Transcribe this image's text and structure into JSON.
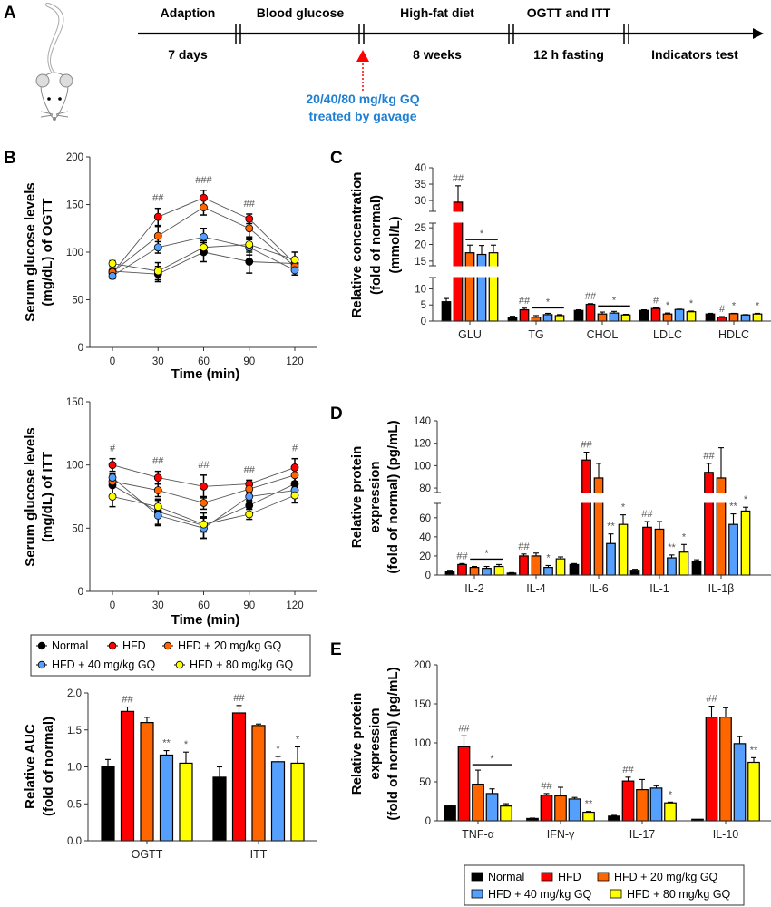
{
  "panels": {
    "a": "A",
    "b": "B",
    "c": "C",
    "d": "D",
    "e": "E"
  },
  "timeline": {
    "stages_top": [
      "Adaption",
      "Blood glucose",
      "High-fat diet",
      "OGTT and ITT"
    ],
    "stages_bottom": [
      "7 days",
      "8 weeks",
      "12 h fasting",
      "Indicators test"
    ],
    "treatment_line1": "20/40/80 mg/kg GQ",
    "treatment_line2": "treated by gavage",
    "treatment_color": "#1f7fd3",
    "arrow_color": "#ff0000",
    "icon": "mouse-illustration"
  },
  "colors": {
    "Normal": "#000000",
    "HFD": "#ff0000",
    "HFD + 20 mg/kg GQ": "#ff6600",
    "HFD + 40 mg/kg GQ": "#55a0ff",
    "HFD + 80 mg/kg GQ": "#ffff00"
  },
  "legend_lines": [
    "Normal",
    "HFD",
    "HFD + 20 mg/kg GQ",
    "HFD + 40 mg/kg GQ",
    "HFD + 80 mg/kg GQ"
  ],
  "legend_bars": [
    "Normal",
    "HFD",
    "HFD + 20 mg/kg GQ",
    "HFD + 40 mg/kg GQ",
    "HFD + 80 mg/kg GQ"
  ],
  "chart_data": [
    {
      "id": "ogtt",
      "type": "line",
      "panel": "B",
      "xlabel": "Time (min)",
      "ylabel": [
        "Serum glucose levels",
        "(mg/dL) of OGTT"
      ],
      "x": [
        0,
        30,
        60,
        90,
        120
      ],
      "xticks": [
        0,
        30,
        60,
        90,
        120
      ],
      "ylim": [
        0,
        200
      ],
      "yticks": [
        0,
        50,
        100,
        150,
        200
      ],
      "grid": false,
      "series": [
        {
          "name": "Normal",
          "values": [
            80,
            77,
            100,
            90,
            88
          ],
          "errors": [
            6,
            8,
            10,
            12,
            5
          ]
        },
        {
          "name": "HFD",
          "values": [
            78,
            137,
            157,
            135,
            88
          ],
          "errors": [
            3,
            9,
            8,
            5,
            5
          ]
        },
        {
          "name": "HFD + 20 mg/kg GQ",
          "values": [
            79,
            117,
            147,
            125,
            85
          ],
          "errors": [
            3,
            10,
            8,
            10,
            5
          ]
        },
        {
          "name": "HFD + 40 mg/kg GQ",
          "values": [
            75,
            105,
            116,
            105,
            81
          ],
          "errors": [
            3,
            6,
            9,
            8,
            5
          ]
        },
        {
          "name": "HFD + 80 mg/kg GQ",
          "values": [
            88,
            80,
            105,
            108,
            92
          ],
          "errors": [
            3,
            9,
            7,
            8,
            8
          ]
        }
      ],
      "annotations": [
        {
          "x": 30,
          "text": "##"
        },
        {
          "x": 60,
          "text": "###"
        },
        {
          "x": 90,
          "text": "##"
        }
      ]
    },
    {
      "id": "itt",
      "type": "line",
      "panel": "B",
      "xlabel": "Time (min)",
      "ylabel": [
        "Serum glucose levels",
        "(mg/dL) of ITT"
      ],
      "x": [
        0,
        30,
        60,
        90,
        120
      ],
      "xticks": [
        0,
        30,
        60,
        90,
        120
      ],
      "ylim": [
        0,
        150
      ],
      "yticks": [
        0,
        50,
        100,
        150
      ],
      "grid": false,
      "series": [
        {
          "name": "Normal",
          "values": [
            84,
            63,
            52,
            68,
            85
          ],
          "errors": [
            8,
            10,
            10,
            3,
            8
          ]
        },
        {
          "name": "HFD",
          "values": [
            100,
            90,
            83,
            85,
            98
          ],
          "errors": [
            5,
            5,
            9,
            3,
            7
          ]
        },
        {
          "name": "HFD + 20 mg/kg GQ",
          "values": [
            87,
            80,
            70,
            81,
            92
          ],
          "errors": [
            4,
            5,
            5,
            3,
            5
          ]
        },
        {
          "name": "HFD + 40 mg/kg GQ",
          "values": [
            90,
            60,
            50,
            75,
            80
          ],
          "errors": [
            3,
            8,
            8,
            3,
            5
          ]
        },
        {
          "name": "HFD + 80 mg/kg GQ",
          "values": [
            75,
            67,
            53,
            61,
            76
          ],
          "errors": [
            8,
            5,
            6,
            4,
            6
          ]
        }
      ],
      "annotations": [
        {
          "x": 0,
          "text": "#"
        },
        {
          "x": 30,
          "text": "##"
        },
        {
          "x": 60,
          "text": "##"
        },
        {
          "x": 90,
          "text": "##"
        },
        {
          "x": 120,
          "text": "#"
        }
      ]
    },
    {
      "id": "auc",
      "type": "bar",
      "panel": "B",
      "ylabel": [
        "Relative AUC",
        "(fold of normal)"
      ],
      "categories": [
        "OGTT",
        "ITT"
      ],
      "ylim": [
        0,
        2
      ],
      "yticks": [
        "0.0",
        "0.5",
        "1.0",
        "1.5",
        "2.0"
      ],
      "series": [
        {
          "name": "Normal",
          "values": [
            1.0,
            0.86
          ],
          "errors": [
            0.1,
            0.14
          ]
        },
        {
          "name": "HFD",
          "values": [
            1.75,
            1.73
          ],
          "errors": [
            0.06,
            0.1
          ]
        },
        {
          "name": "HFD + 20 mg/kg GQ",
          "values": [
            1.6,
            1.56
          ],
          "errors": [
            0.07,
            0.02
          ]
        },
        {
          "name": "HFD + 40 mg/kg GQ",
          "values": [
            1.16,
            1.07
          ],
          "errors": [
            0.06,
            0.07
          ]
        },
        {
          "name": "HFD + 80 mg/kg GQ",
          "values": [
            1.05,
            1.05
          ],
          "errors": [
            0.15,
            0.22
          ]
        }
      ],
      "annotations": [
        {
          "category": "OGTT",
          "series": "HFD",
          "text": "##"
        },
        {
          "category": "OGTT",
          "series": "HFD + 40 mg/kg GQ",
          "text": "**"
        },
        {
          "category": "OGTT",
          "series": "HFD + 80 mg/kg GQ",
          "text": "*"
        },
        {
          "category": "ITT",
          "series": "HFD",
          "text": "##"
        },
        {
          "category": "ITT",
          "series": "HFD + 40 mg/kg GQ",
          "text": "*"
        },
        {
          "category": "ITT",
          "series": "HFD + 80 mg/kg GQ",
          "text": "*"
        }
      ]
    },
    {
      "id": "lipids",
      "type": "bar",
      "panel": "C",
      "ylabel": [
        "Relative concentration",
        "(fold of normal)",
        "(mmol/L)"
      ],
      "categories": [
        "GLU",
        "TG",
        "CHOL",
        "LDLC",
        "HDLC"
      ],
      "ylim": [
        0,
        40
      ],
      "y_axis_segments": [
        [
          0,
          13.5
        ],
        [
          13.6,
          26.4
        ],
        [
          26.7,
          40
        ]
      ],
      "yticks": [
        0,
        5,
        10,
        15,
        20,
        25,
        30,
        35,
        40
      ],
      "series": [
        {
          "name": "Normal",
          "values": [
            6,
            1.2,
            3.3,
            3.3,
            2.2
          ],
          "errors": [
            1,
            0.3,
            0.2,
            0.2,
            0.2
          ]
        },
        {
          "name": "HFD",
          "values": [
            29.5,
            3.5,
            5.2,
            3.9,
            1.2
          ],
          "errors": [
            5,
            0.5,
            0.2,
            0.2,
            0.2
          ]
        },
        {
          "name": "HFD + 20 mg/kg GQ",
          "values": [
            17.5,
            1.2,
            2.2,
            2.2,
            2.3
          ],
          "errors": [
            2.3,
            0.5,
            0.6,
            0.3,
            0.1
          ]
        },
        {
          "name": "HFD + 40 mg/kg GQ",
          "values": [
            17,
            2.0,
            2.5,
            3.6,
            1.9
          ],
          "errors": [
            2.7,
            0.4,
            0.5,
            0.1,
            0.1
          ]
        },
        {
          "name": "HFD + 80 mg/kg GQ",
          "values": [
            17.5,
            1.7,
            1.9,
            2.9,
            2.2
          ],
          "errors": [
            2.3,
            0.3,
            0.2,
            0.2,
            0.2
          ]
        }
      ],
      "annotations": [
        {
          "category": "GLU",
          "series": "HFD",
          "text": "##"
        },
        {
          "category": "GLU",
          "bracket": [
            "HFD + 20 mg/kg GQ",
            "HFD + 80 mg/kg GQ"
          ],
          "text": "*"
        },
        {
          "category": "TG",
          "series": "HFD",
          "text": "##"
        },
        {
          "category": "TG",
          "bracket": [
            "HFD + 20 mg/kg GQ",
            "HFD + 80 mg/kg GQ"
          ],
          "text": "*"
        },
        {
          "category": "CHOL",
          "series": "HFD",
          "text": "##"
        },
        {
          "category": "CHOL",
          "bracket": [
            "HFD + 20 mg/kg GQ",
            "HFD + 80 mg/kg GQ"
          ],
          "text": "*"
        },
        {
          "category": "LDLC",
          "series": "HFD",
          "text": "#"
        },
        {
          "category": "LDLC",
          "series": "HFD + 20 mg/kg GQ",
          "text": "*"
        },
        {
          "category": "LDLC",
          "series": "HFD + 80 mg/kg GQ",
          "text": "*"
        },
        {
          "category": "HDLC",
          "series": "HFD",
          "text": "#"
        },
        {
          "category": "HDLC",
          "series": "HFD + 20 mg/kg GQ",
          "text": "*"
        },
        {
          "category": "HDLC",
          "series": "HFD + 80 mg/kg GQ",
          "text": "*"
        }
      ]
    },
    {
      "id": "interleukins",
      "type": "bar",
      "panel": "D",
      "ylabel": [
        "Relative protein",
        "expression",
        "(fold of normal) (pg/mL)"
      ],
      "categories": [
        "IL-2",
        "IL-4",
        "IL-6",
        "IL-1",
        "IL-1β"
      ],
      "ylim": [
        0,
        140
      ],
      "y_axis_segments": [
        [
          0,
          75
        ],
        [
          76,
          140
        ]
      ],
      "yticks": [
        0,
        20,
        40,
        60,
        80,
        100,
        120,
        140
      ],
      "series": [
        {
          "name": "Normal",
          "values": [
            4,
            2,
            11,
            5,
            14
          ],
          "errors": [
            1,
            0.5,
            1,
            1,
            2
          ]
        },
        {
          "name": "HFD",
          "values": [
            11,
            20,
            105,
            50,
            94
          ],
          "errors": [
            1,
            2,
            7,
            6,
            8
          ]
        },
        {
          "name": "HFD + 20 mg/kg GQ",
          "values": [
            8,
            20,
            89,
            48,
            89
          ],
          "errors": [
            1,
            3,
            13,
            8,
            27
          ]
        },
        {
          "name": "HFD + 40 mg/kg GQ",
          "values": [
            7,
            8,
            33,
            18,
            53
          ],
          "errors": [
            2,
            2,
            10,
            3,
            11
          ]
        },
        {
          "name": "HFD + 80 mg/kg GQ",
          "values": [
            9,
            17,
            53,
            24,
            67
          ],
          "errors": [
            2,
            2,
            10,
            8,
            4
          ]
        }
      ],
      "annotations": [
        {
          "category": "IL-2",
          "series": "HFD",
          "text": "##"
        },
        {
          "category": "IL-2",
          "bracket": [
            "HFD + 20 mg/kg GQ",
            "HFD + 80 mg/kg GQ"
          ],
          "text": "*"
        },
        {
          "category": "IL-4",
          "series": "HFD",
          "text": "##"
        },
        {
          "category": "IL-4",
          "series": "HFD + 40 mg/kg GQ",
          "text": "*"
        },
        {
          "category": "IL-6",
          "series": "HFD",
          "text": "##"
        },
        {
          "category": "IL-6",
          "series": "HFD + 40 mg/kg GQ",
          "text": "**"
        },
        {
          "category": "IL-6",
          "series": "HFD + 80 mg/kg GQ",
          "text": "*"
        },
        {
          "category": "IL-1",
          "series": "HFD",
          "text": "##"
        },
        {
          "category": "IL-1",
          "series": "HFD + 40 mg/kg GQ",
          "text": "**"
        },
        {
          "category": "IL-1",
          "series": "HFD + 80 mg/kg GQ",
          "text": "*"
        },
        {
          "category": "IL-1β",
          "series": "HFD",
          "text": "##"
        },
        {
          "category": "IL-1β",
          "series": "HFD + 40 mg/kg GQ",
          "text": "**"
        },
        {
          "category": "IL-1β",
          "series": "HFD + 80 mg/kg GQ",
          "text": "*"
        }
      ]
    },
    {
      "id": "cytokines",
      "type": "bar",
      "panel": "E",
      "ylabel": [
        "Relative protein",
        "expression",
        "(fold of normal) (pg/mL)"
      ],
      "categories": [
        "TNF-α",
        "IFN-γ",
        "IL-17",
        "IL-10"
      ],
      "ylim": [
        0,
        200
      ],
      "yticks": [
        0,
        50,
        100,
        150,
        200
      ],
      "series": [
        {
          "name": "Normal",
          "values": [
            19,
            3,
            6,
            2
          ],
          "errors": [
            1,
            0.5,
            1,
            0
          ]
        },
        {
          "name": "HFD",
          "values": [
            95,
            33,
            51,
            133
          ],
          "errors": [
            14,
            2,
            5,
            14
          ]
        },
        {
          "name": "HFD + 20 mg/kg GQ",
          "values": [
            47,
            32,
            40,
            133
          ],
          "errors": [
            18,
            11,
            13,
            12
          ]
        },
        {
          "name": "HFD + 40 mg/kg GQ",
          "values": [
            35,
            28,
            42,
            99
          ],
          "errors": [
            6,
            2,
            3,
            9
          ]
        },
        {
          "name": "HFD + 80 mg/kg GQ",
          "values": [
            19,
            11,
            23,
            75
          ],
          "errors": [
            3,
            1,
            1,
            6
          ]
        }
      ],
      "annotations": [
        {
          "category": "TNF-α",
          "series": "HFD",
          "text": "##"
        },
        {
          "category": "TNF-α",
          "bracket": [
            "HFD + 20 mg/kg GQ",
            "HFD + 80 mg/kg GQ"
          ],
          "text": "*"
        },
        {
          "category": "IFN-γ",
          "series": "HFD",
          "text": "##"
        },
        {
          "category": "IFN-γ",
          "series": "HFD + 80 mg/kg GQ",
          "text": "**"
        },
        {
          "category": "IL-17",
          "series": "HFD",
          "text": "##"
        },
        {
          "category": "IL-17",
          "series": "HFD + 80 mg/kg GQ",
          "text": "*"
        },
        {
          "category": "IL-10",
          "series": "HFD",
          "text": "##"
        },
        {
          "category": "IL-10",
          "series": "HFD + 80 mg/kg GQ",
          "text": "**"
        }
      ]
    }
  ]
}
